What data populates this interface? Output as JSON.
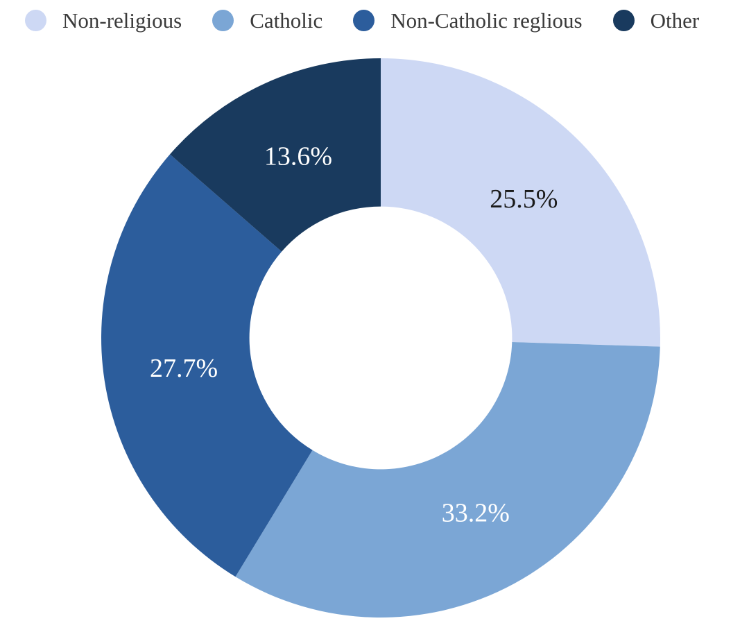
{
  "chart_data": {
    "type": "pie",
    "subtype": "donut",
    "title": "",
    "legend_position": "top",
    "direction": "clockwise",
    "start_angle_deg": 0,
    "inner_radius_ratio": 0.47,
    "background_color": "#ffffff",
    "legend_text_color": "#3a3a3a",
    "segments": [
      {
        "label": "Non-religious",
        "value": 25.5,
        "display": "25.5%",
        "color": "#CDD8F4",
        "label_color": "#1a1a1a"
      },
      {
        "label": "Catholic",
        "value": 33.2,
        "display": "33.2%",
        "color": "#7BA6D5",
        "label_color": "#ffffff"
      },
      {
        "label": "Non-Catholic reglious",
        "value": 27.7,
        "display": "27.7%",
        "color": "#2C5D9C",
        "label_color": "#ffffff"
      },
      {
        "label": "Other",
        "value": 13.6,
        "display": "13.6%",
        "color": "#193A5E",
        "label_color": "#ffffff"
      }
    ]
  }
}
